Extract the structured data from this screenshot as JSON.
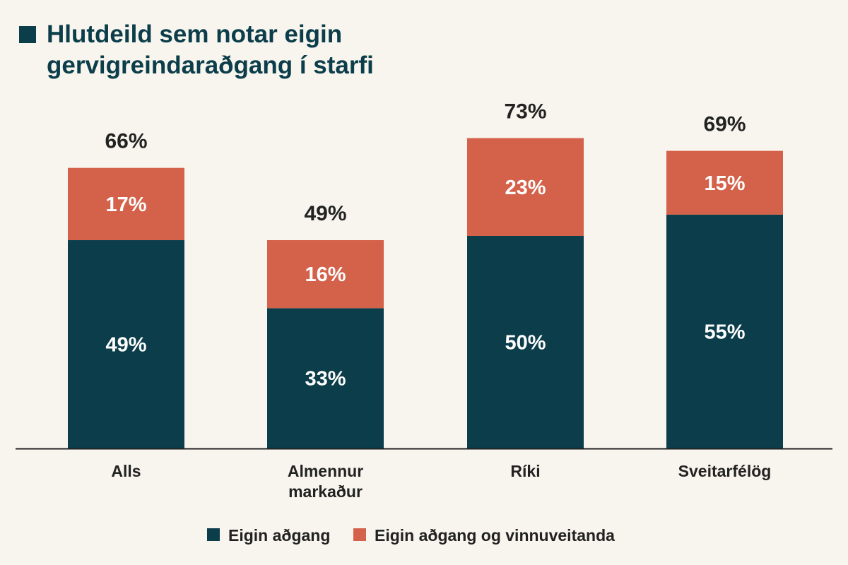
{
  "chart_data": {
    "type": "bar",
    "stacked": true,
    "title": "Hlutdeild sem notar eigin gervigreindaraðgang í starfi",
    "title_lines": [
      "Hlutdeild sem notar eigin",
      "gervigreindaraðgang í starfi"
    ],
    "categories": [
      [
        "Alls"
      ],
      [
        "Almennur",
        "markaður"
      ],
      [
        "Ríki"
      ],
      [
        "Sveitarfélög"
      ]
    ],
    "series": [
      {
        "name": "Eigin aðgang",
        "color": "#0b3d4a",
        "values": [
          49,
          33,
          50,
          55
        ]
      },
      {
        "name": "Eigin aðgang og vinnuveitanda",
        "color": "#d4614a",
        "values": [
          17,
          16,
          23,
          15
        ]
      }
    ],
    "totals": [
      66,
      49,
      73,
      69
    ],
    "value_suffix": "%",
    "ylim": [
      0,
      73
    ],
    "grid": false,
    "legend": "bottom-center"
  }
}
